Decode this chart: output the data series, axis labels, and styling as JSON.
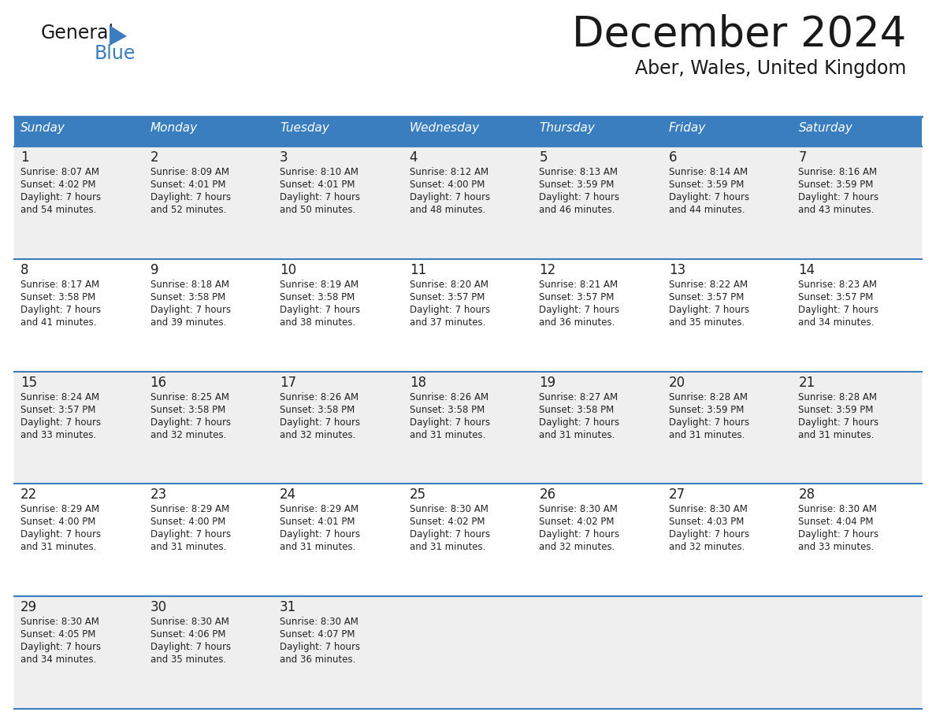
{
  "title": "December 2024",
  "subtitle": "Aber, Wales, United Kingdom",
  "header_bg": "#3a7ebf",
  "header_text": "#FFFFFF",
  "cell_bg": "#EFEFEF",
  "cell_bg2": "#FFFFFF",
  "border_color": "#3a7ebf",
  "text_color": "#222222",
  "day_names": [
    "Sunday",
    "Monday",
    "Tuesday",
    "Wednesday",
    "Thursday",
    "Friday",
    "Saturday"
  ],
  "weeks": [
    [
      {
        "day": "1",
        "sunrise": "8:07 AM",
        "sunset": "4:02 PM",
        "daylight": "7 hours",
        "daylight2": "and 54 minutes."
      },
      {
        "day": "2",
        "sunrise": "8:09 AM",
        "sunset": "4:01 PM",
        "daylight": "7 hours",
        "daylight2": "and 52 minutes."
      },
      {
        "day": "3",
        "sunrise": "8:10 AM",
        "sunset": "4:01 PM",
        "daylight": "7 hours",
        "daylight2": "and 50 minutes."
      },
      {
        "day": "4",
        "sunrise": "8:12 AM",
        "sunset": "4:00 PM",
        "daylight": "7 hours",
        "daylight2": "and 48 minutes."
      },
      {
        "day": "5",
        "sunrise": "8:13 AM",
        "sunset": "3:59 PM",
        "daylight": "7 hours",
        "daylight2": "and 46 minutes."
      },
      {
        "day": "6",
        "sunrise": "8:14 AM",
        "sunset": "3:59 PM",
        "daylight": "7 hours",
        "daylight2": "and 44 minutes."
      },
      {
        "day": "7",
        "sunrise": "8:16 AM",
        "sunset": "3:59 PM",
        "daylight": "7 hours",
        "daylight2": "and 43 minutes."
      }
    ],
    [
      {
        "day": "8",
        "sunrise": "8:17 AM",
        "sunset": "3:58 PM",
        "daylight": "7 hours",
        "daylight2": "and 41 minutes."
      },
      {
        "day": "9",
        "sunrise": "8:18 AM",
        "sunset": "3:58 PM",
        "daylight": "7 hours",
        "daylight2": "and 39 minutes."
      },
      {
        "day": "10",
        "sunrise": "8:19 AM",
        "sunset": "3:58 PM",
        "daylight": "7 hours",
        "daylight2": "and 38 minutes."
      },
      {
        "day": "11",
        "sunrise": "8:20 AM",
        "sunset": "3:57 PM",
        "daylight": "7 hours",
        "daylight2": "and 37 minutes."
      },
      {
        "day": "12",
        "sunrise": "8:21 AM",
        "sunset": "3:57 PM",
        "daylight": "7 hours",
        "daylight2": "and 36 minutes."
      },
      {
        "day": "13",
        "sunrise": "8:22 AM",
        "sunset": "3:57 PM",
        "daylight": "7 hours",
        "daylight2": "and 35 minutes."
      },
      {
        "day": "14",
        "sunrise": "8:23 AM",
        "sunset": "3:57 PM",
        "daylight": "7 hours",
        "daylight2": "and 34 minutes."
      }
    ],
    [
      {
        "day": "15",
        "sunrise": "8:24 AM",
        "sunset": "3:57 PM",
        "daylight": "7 hours",
        "daylight2": "and 33 minutes."
      },
      {
        "day": "16",
        "sunrise": "8:25 AM",
        "sunset": "3:58 PM",
        "daylight": "7 hours",
        "daylight2": "and 32 minutes."
      },
      {
        "day": "17",
        "sunrise": "8:26 AM",
        "sunset": "3:58 PM",
        "daylight": "7 hours",
        "daylight2": "and 32 minutes."
      },
      {
        "day": "18",
        "sunrise": "8:26 AM",
        "sunset": "3:58 PM",
        "daylight": "7 hours",
        "daylight2": "and 31 minutes."
      },
      {
        "day": "19",
        "sunrise": "8:27 AM",
        "sunset": "3:58 PM",
        "daylight": "7 hours",
        "daylight2": "and 31 minutes."
      },
      {
        "day": "20",
        "sunrise": "8:28 AM",
        "sunset": "3:59 PM",
        "daylight": "7 hours",
        "daylight2": "and 31 minutes."
      },
      {
        "day": "21",
        "sunrise": "8:28 AM",
        "sunset": "3:59 PM",
        "daylight": "7 hours",
        "daylight2": "and 31 minutes."
      }
    ],
    [
      {
        "day": "22",
        "sunrise": "8:29 AM",
        "sunset": "4:00 PM",
        "daylight": "7 hours",
        "daylight2": "and 31 minutes."
      },
      {
        "day": "23",
        "sunrise": "8:29 AM",
        "sunset": "4:00 PM",
        "daylight": "7 hours",
        "daylight2": "and 31 minutes."
      },
      {
        "day": "24",
        "sunrise": "8:29 AM",
        "sunset": "4:01 PM",
        "daylight": "7 hours",
        "daylight2": "and 31 minutes."
      },
      {
        "day": "25",
        "sunrise": "8:30 AM",
        "sunset": "4:02 PM",
        "daylight": "7 hours",
        "daylight2": "and 31 minutes."
      },
      {
        "day": "26",
        "sunrise": "8:30 AM",
        "sunset": "4:02 PM",
        "daylight": "7 hours",
        "daylight2": "and 32 minutes."
      },
      {
        "day": "27",
        "sunrise": "8:30 AM",
        "sunset": "4:03 PM",
        "daylight": "7 hours",
        "daylight2": "and 32 minutes."
      },
      {
        "day": "28",
        "sunrise": "8:30 AM",
        "sunset": "4:04 PM",
        "daylight": "7 hours",
        "daylight2": "and 33 minutes."
      }
    ],
    [
      {
        "day": "29",
        "sunrise": "8:30 AM",
        "sunset": "4:05 PM",
        "daylight": "7 hours",
        "daylight2": "and 34 minutes."
      },
      {
        "day": "30",
        "sunrise": "8:30 AM",
        "sunset": "4:06 PM",
        "daylight": "7 hours",
        "daylight2": "and 35 minutes."
      },
      {
        "day": "31",
        "sunrise": "8:30 AM",
        "sunset": "4:07 PM",
        "daylight": "7 hours",
        "daylight2": "and 36 minutes."
      },
      null,
      null,
      null,
      null
    ]
  ],
  "bg_color": "#FFFFFF"
}
